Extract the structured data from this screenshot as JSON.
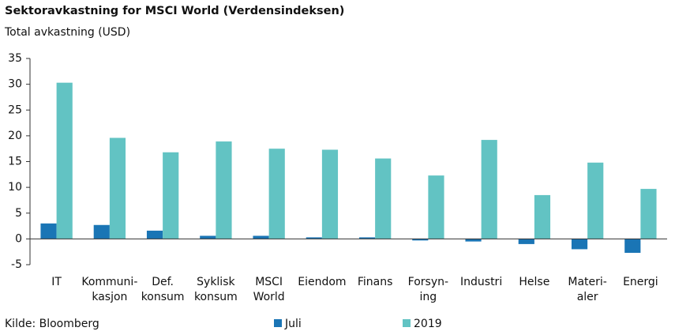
{
  "chart_data": {
    "type": "bar",
    "title": "Sektoravkastning for MSCI World (Verdensindeksen)",
    "subtitle": "Total avkastning (USD)",
    "source": "Kilde: Bloomberg",
    "categories": [
      "IT",
      "Kommuni-\nkasjon",
      "Def.\nkonsum",
      "Syklisk\nkonsum",
      "MSCI\nWorld",
      "Eiendom",
      "Finans",
      "Forsyn-\ning",
      "Industri",
      "Helse",
      "Materi-\naler",
      "Energi"
    ],
    "series": [
      {
        "name": "Juli",
        "color": "#1a75b5",
        "values": [
          3.0,
          2.7,
          1.6,
          0.6,
          0.6,
          0.3,
          0.3,
          -0.3,
          -0.5,
          -1.0,
          -2.0,
          -2.7
        ]
      },
      {
        "name": "2019",
        "color": "#62c3c3",
        "values": [
          30.3,
          19.6,
          16.8,
          18.9,
          17.5,
          17.3,
          15.6,
          12.3,
          19.2,
          8.5,
          14.8,
          9.7
        ]
      }
    ],
    "ylim": [
      -5,
      35
    ],
    "yticks": [
      -5,
      0,
      5,
      10,
      15,
      20,
      25,
      30,
      35
    ],
    "grid": false
  }
}
